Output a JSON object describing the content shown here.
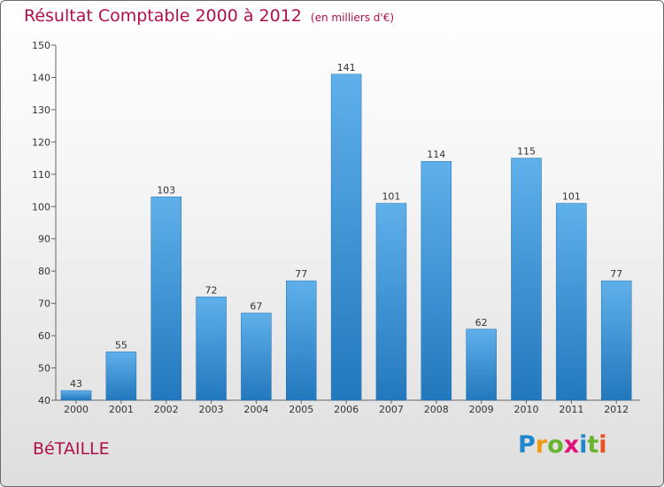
{
  "chart_data": {
    "type": "bar",
    "title": "Résultat Comptable 2000 à 2012",
    "subtitle": "(en milliers d'€)",
    "categories": [
      "2000",
      "2001",
      "2002",
      "2003",
      "2004",
      "2005",
      "2006",
      "2007",
      "2008",
      "2009",
      "2010",
      "2011",
      "2012"
    ],
    "values": [
      43,
      55,
      103,
      72,
      67,
      77,
      141,
      101,
      114,
      62,
      115,
      101,
      77
    ],
    "ylim": [
      40,
      150
    ],
    "yticks": [
      40,
      50,
      60,
      70,
      80,
      90,
      100,
      110,
      120,
      130,
      140,
      150
    ],
    "xlabel": "",
    "ylabel": "",
    "grid": false,
    "colors": {
      "bar_top": "#5fb0ea",
      "bar_bottom": "#2378bd",
      "title": "#b0104a"
    }
  },
  "footer": {
    "commune": "BéTAILLE",
    "brand": "Proxiti"
  }
}
